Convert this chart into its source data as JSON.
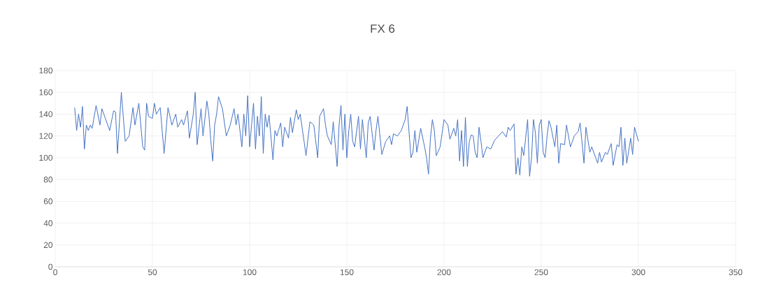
{
  "chart_data": {
    "type": "line",
    "title": "FX 6",
    "xlim": [
      0,
      350
    ],
    "xticks": [
      0,
      50,
      100,
      150,
      200,
      250,
      300,
      350
    ],
    "ylim": [
      0,
      180
    ],
    "yticks": [
      0,
      20,
      40,
      60,
      80,
      100,
      120,
      140,
      160,
      180
    ],
    "grid": true,
    "marker": "none",
    "line_style": "solid",
    "series": [
      {
        "color": "#4472c4",
        "x": [
          10,
          11,
          12,
          13,
          14,
          15,
          16,
          17,
          18,
          19,
          21,
          23,
          24,
          26,
          28,
          30,
          31,
          32,
          34,
          36,
          38,
          40,
          41,
          43,
          45,
          46,
          47,
          48,
          50,
          51,
          52,
          54,
          55,
          56,
          58,
          60,
          62,
          63,
          65,
          66,
          68,
          69,
          71,
          72,
          73,
          75,
          76,
          78,
          79,
          80,
          81,
          82,
          83,
          84,
          86,
          88,
          90,
          92,
          93,
          94,
          96,
          97,
          98,
          99,
          100,
          101,
          102,
          103,
          104,
          105,
          106,
          107,
          108,
          109,
          110,
          112,
          113,
          114,
          116,
          117,
          118,
          120,
          121,
          122,
          124,
          125,
          126,
          128,
          129,
          131,
          133,
          135,
          136,
          138,
          139,
          140,
          142,
          143,
          145,
          146,
          147,
          148,
          149,
          150,
          151,
          152,
          153,
          154,
          156,
          157,
          158,
          160,
          161,
          162,
          164,
          165,
          166,
          168,
          170,
          172,
          173,
          174,
          176,
          178,
          180,
          181,
          183,
          184,
          185,
          186,
          188,
          190,
          191,
          192,
          193,
          194,
          195,
          196,
          198,
          200,
          202,
          203,
          205,
          206,
          207,
          208,
          209,
          210,
          211,
          212,
          213,
          214,
          215,
          216,
          217,
          218,
          219,
          220,
          222,
          224,
          226,
          228,
          230,
          232,
          233,
          234,
          236,
          237,
          238,
          239,
          240,
          241,
          243,
          244,
          245,
          246,
          247,
          248,
          249,
          250,
          251,
          252,
          253,
          254,
          255,
          257,
          258,
          259,
          260,
          262,
          263,
          265,
          267,
          269,
          270,
          272,
          273,
          275,
          276,
          278,
          279,
          280,
          281,
          283,
          284,
          286,
          287,
          289,
          290,
          291,
          292,
          293,
          294,
          296,
          297,
          298,
          300
        ],
        "values": [
          146,
          125,
          140,
          128,
          147,
          108,
          130,
          125,
          130,
          127,
          148,
          130,
          145,
          135,
          125,
          143,
          142,
          104,
          160,
          115,
          120,
          146,
          130,
          150,
          110,
          107,
          150,
          138,
          136,
          150,
          140,
          146,
          125,
          104,
          146,
          130,
          140,
          128,
          135,
          130,
          143,
          118,
          140,
          160,
          112,
          145,
          120,
          152,
          140,
          116,
          97,
          130,
          140,
          156,
          145,
          120,
          130,
          145,
          130,
          140,
          110,
          140,
          120,
          157,
          110,
          130,
          150,
          108,
          138,
          120,
          156,
          104,
          140,
          128,
          139,
          98,
          125,
          120,
          132,
          110,
          128,
          118,
          137,
          123,
          144,
          135,
          140,
          115,
          102,
          133,
          130,
          100,
          138,
          145,
          130,
          120,
          112,
          133,
          92,
          130,
          148,
          107,
          140,
          100,
          125,
          140,
          115,
          110,
          138,
          108,
          135,
          100,
          132,
          138,
          107,
          125,
          138,
          103,
          115,
          120,
          112,
          122,
          120,
          125,
          135,
          147,
          100,
          105,
          125,
          105,
          127,
          110,
          100,
          85,
          118,
          135,
          125,
          102,
          110,
          135,
          130,
          117,
          127,
          120,
          135,
          97,
          125,
          92,
          137,
          92,
          115,
          121,
          120,
          105,
          100,
          128,
          115,
          100,
          110,
          108,
          116,
          120,
          124,
          119,
          128,
          125,
          131,
          85,
          100,
          84,
          110,
          102,
          135,
          83,
          100,
          135,
          123,
          95,
          130,
          135,
          105,
          100,
          120,
          134,
          128,
          110,
          130,
          95,
          113,
          112,
          130,
          110,
          120,
          124,
          132,
          95,
          128,
          105,
          110,
          100,
          95,
          105,
          96,
          105,
          103,
          113,
          93,
          112,
          110,
          128,
          93,
          118,
          95,
          118,
          103,
          128,
          115
        ]
      }
    ]
  }
}
